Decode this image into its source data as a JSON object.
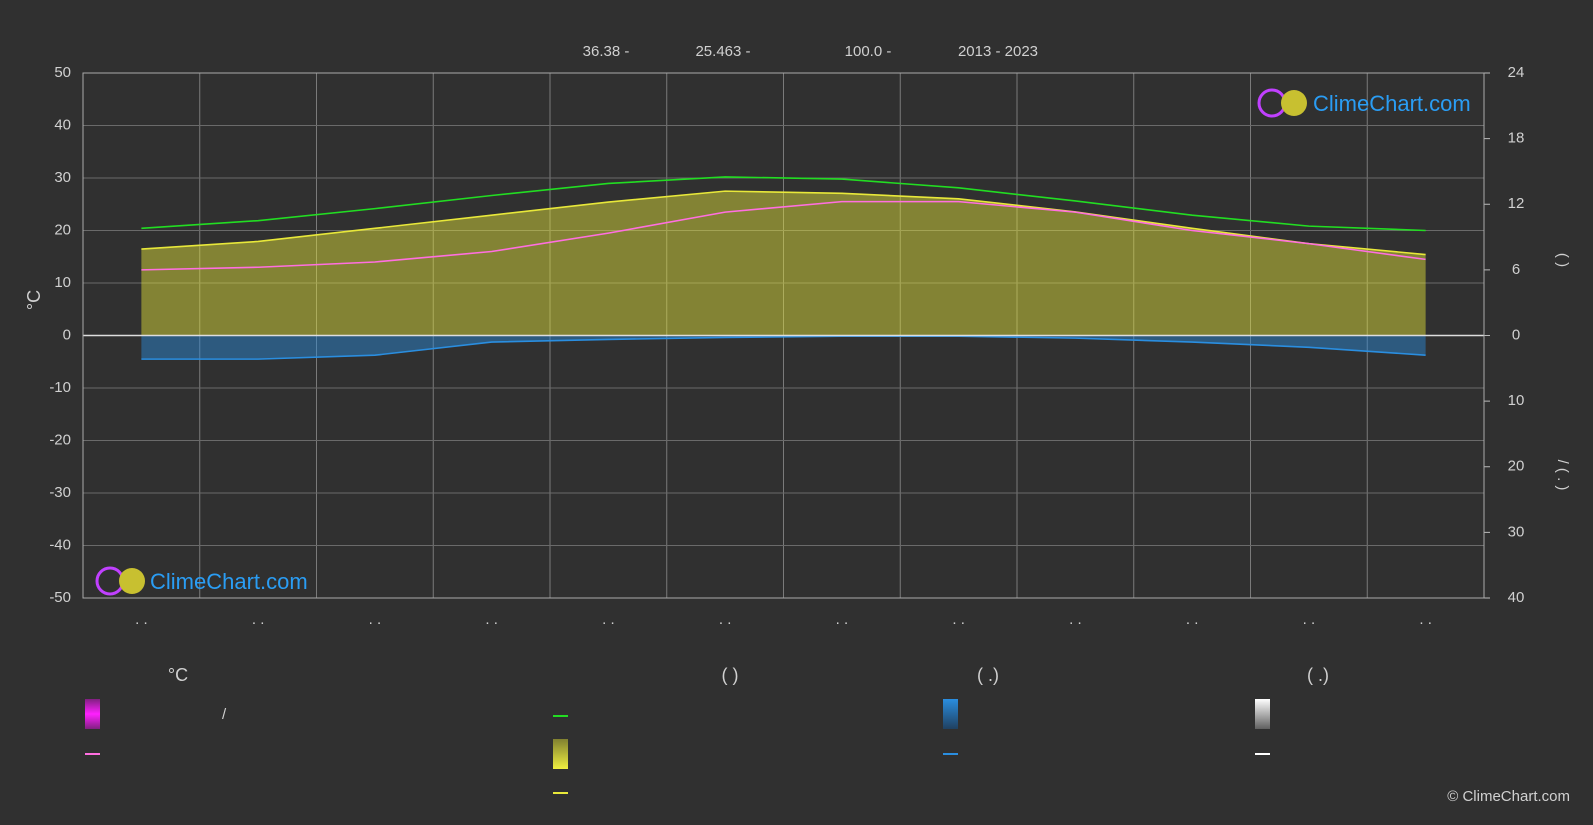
{
  "chart_data": {
    "type": "line",
    "info": [
      "36.38 -",
      "25.463 -",
      "100.0 -",
      "2013 - 2023"
    ],
    "y_label": "°C",
    "y2_label": "(    )",
    "y3_label": "/    (  .  )",
    "categories": [
      ". .",
      ". .",
      ". .",
      ". .",
      ". .",
      ". .",
      ". .",
      ". .",
      ". .",
      ". .",
      ". .",
      ". ."
    ],
    "ylim": [
      -50,
      50
    ],
    "yticks": [
      50,
      40,
      30,
      20,
      10,
      0,
      -10,
      -20,
      -30,
      -40,
      -50
    ],
    "y2lim": [
      0,
      24
    ],
    "y2ticks": [
      0,
      6,
      12,
      18,
      24
    ],
    "y3lim": [
      0,
      40
    ],
    "y3ticks": [
      10,
      20,
      30,
      40
    ],
    "grid": true,
    "series": [
      {
        "color": "#22dd22",
        "axis": "y2",
        "values": [
          9.8,
          10.5,
          11.6,
          12.8,
          13.9,
          14.5,
          14.3,
          13.5,
          12.3,
          11.0,
          10.0,
          9.6
        ]
      },
      {
        "color": "#e8e83a",
        "axis": "y2",
        "area": true,
        "values": [
          7.9,
          8.6,
          9.8,
          11.0,
          12.2,
          13.2,
          13.0,
          12.5,
          11.3,
          9.8,
          8.4,
          7.4
        ]
      },
      {
        "color": "#ff6fe0",
        "axis": "y",
        "values": [
          12.5,
          13.0,
          14.0,
          16.0,
          19.5,
          23.5,
          25.5,
          25.5,
          23.5,
          20.0,
          17.5,
          14.5
        ]
      },
      {
        "color": "#2a8ee0",
        "axis": "y3",
        "area": true,
        "values": [
          3.6,
          3.6,
          3.0,
          1.0,
          0.6,
          0.3,
          0.1,
          0.1,
          0.4,
          1.0,
          1.8,
          3.0
        ]
      }
    ],
    "legend_headers": [
      "°C",
      "(          )",
      "(   .)",
      "(   .)"
    ],
    "legend_slash": "/",
    "watermark": "ClimeChart.com",
    "copyright": "© ClimeChart.com"
  }
}
